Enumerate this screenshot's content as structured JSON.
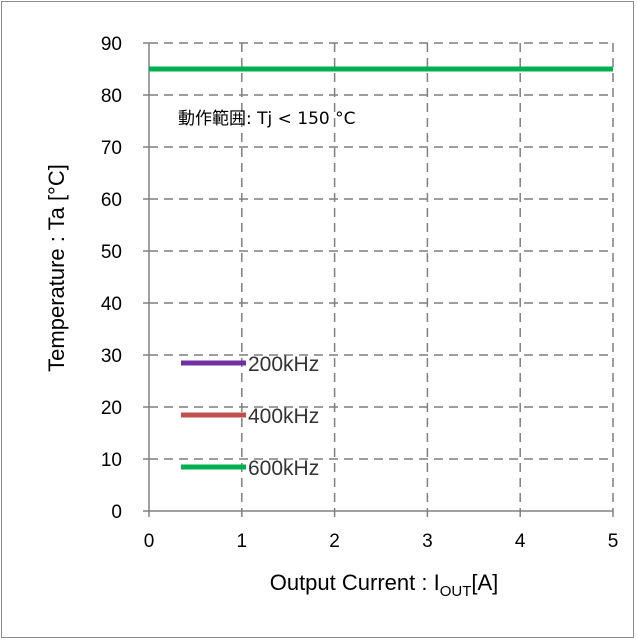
{
  "chart_data": {
    "type": "line",
    "xlabel_main": "Output Current : I",
    "xlabel_sub": "OUT",
    "xlabel_unit": "[A]",
    "ylabel": "Temperature : Ta [°C]",
    "annotation": "動作範囲: Tj < 150 °C",
    "xlim": [
      0,
      5
    ],
    "ylim": [
      0,
      90
    ],
    "x_ticks": [
      "0",
      "1",
      "2",
      "3",
      "4",
      "5"
    ],
    "y_ticks": [
      "0",
      "10",
      "20",
      "30",
      "40",
      "50",
      "60",
      "70",
      "80",
      "90"
    ],
    "grid": true,
    "legend_position": "bottom-left",
    "series": [
      {
        "name": "200kHz",
        "color": "#7030a0",
        "x": [
          0,
          5
        ],
        "y": [
          85,
          85
        ]
      },
      {
        "name": "400kHz",
        "color": "#c0504d",
        "x": [
          0,
          5
        ],
        "y": [
          85,
          85
        ]
      },
      {
        "name": "600kHz",
        "color": "#00b050",
        "x": [
          0,
          5
        ],
        "y": [
          85,
          85
        ]
      }
    ]
  }
}
